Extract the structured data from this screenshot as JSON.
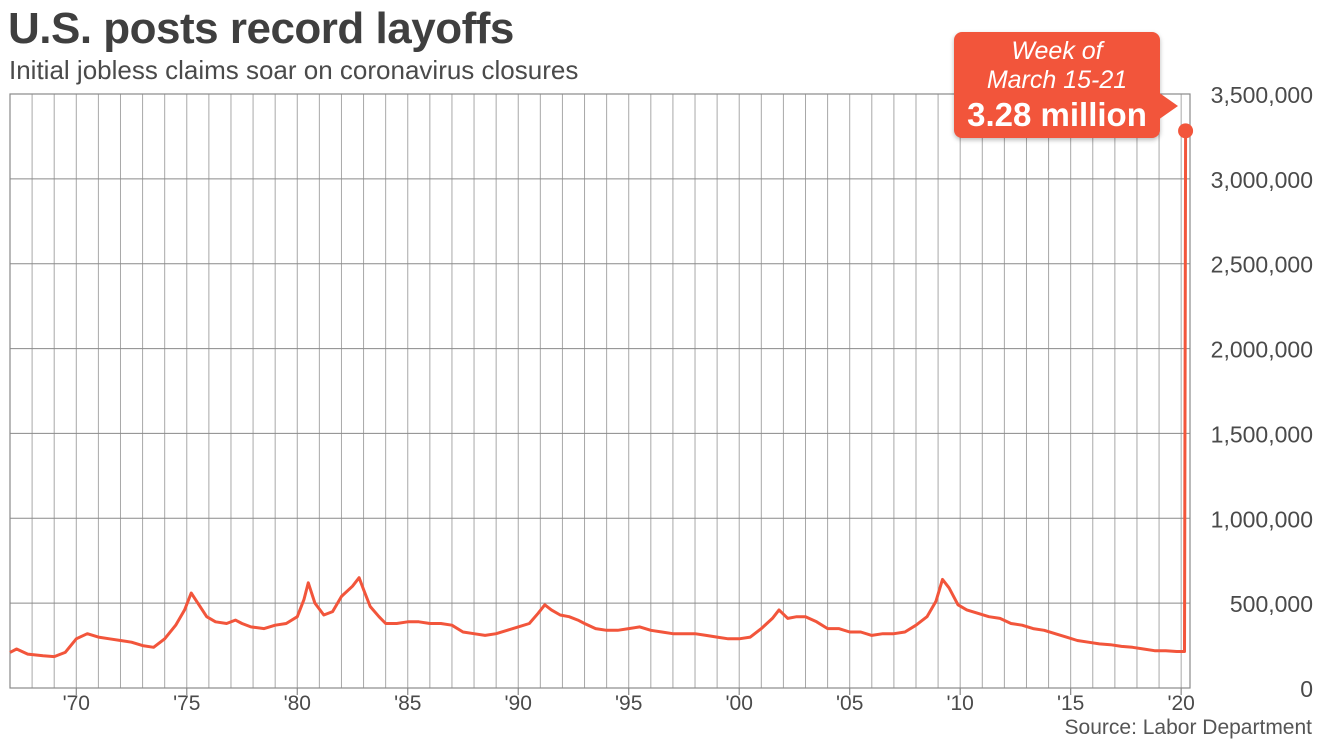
{
  "title": "U.S. posts record layoffs",
  "subtitle": "Initial jobless claims soar on coronavirus closures",
  "source": "Source: Labor Department",
  "callout": {
    "line1": "Week of",
    "line2": "March 15-21",
    "value": "3.28 million"
  },
  "colors": {
    "series": "#f2553b",
    "grid": "#a8a8a8",
    "frame": "#8a8a8a",
    "text": "#4a4a4a"
  },
  "chart_data": {
    "type": "line",
    "title": "U.S. posts record layoffs",
    "subtitle": "Initial jobless claims soar on coronavirus closures",
    "xlabel": "",
    "ylabel": "",
    "xlim": [
      1967.0,
      2020.4
    ],
    "ylim": [
      0,
      3500000
    ],
    "grid": true,
    "y_ticks": [
      0,
      500000,
      1000000,
      1500000,
      2000000,
      2500000,
      3000000,
      3500000
    ],
    "y_tick_labels": [
      "0",
      "500,000",
      "1,000,000",
      "1,500,000",
      "2,000,000",
      "2,500,000",
      "3,000,000",
      "3,500,000"
    ],
    "x_ticks": [
      1970,
      1975,
      1980,
      1985,
      1990,
      1995,
      2000,
      2005,
      2010,
      2015,
      2020
    ],
    "x_tick_labels": [
      "'70",
      "'75",
      "'80",
      "'85",
      "'90",
      "'95",
      "'00",
      "'05",
      "'10",
      "'15",
      "'20"
    ],
    "series": [
      {
        "x": [
          1967.0,
          1967.3,
          1967.8,
          1968.5,
          1969.0,
          1969.5,
          1970.0,
          1970.5,
          1971.0,
          1971.5,
          1972.0,
          1972.5,
          1973.0,
          1973.5,
          1974.0,
          1974.5,
          1974.9,
          1975.2,
          1975.5,
          1975.9,
          1976.3,
          1976.8,
          1977.2,
          1977.5,
          1977.9,
          1978.5,
          1979.0,
          1979.5,
          1980.0,
          1980.3,
          1980.5,
          1980.8,
          1981.2,
          1981.6,
          1982.0,
          1982.5,
          1982.8,
          1983.0,
          1983.3,
          1983.7,
          1984.0,
          1984.5,
          1985.0,
          1985.5,
          1986.0,
          1986.5,
          1987.0,
          1987.5,
          1988.0,
          1988.5,
          1989.0,
          1989.5,
          1990.0,
          1990.5,
          1990.9,
          1991.2,
          1991.5,
          1991.9,
          1992.3,
          1992.7,
          1993.0,
          1993.5,
          1994.0,
          1994.5,
          1995.0,
          1995.5,
          1996.0,
          1996.5,
          1997.0,
          1997.5,
          1998.0,
          1998.5,
          1999.0,
          1999.5,
          2000.0,
          2000.5,
          2001.0,
          2001.5,
          2001.8,
          2002.2,
          2002.6,
          2003.0,
          2003.5,
          2004.0,
          2004.5,
          2005.0,
          2005.5,
          2006.0,
          2006.5,
          2007.0,
          2007.5,
          2008.0,
          2008.5,
          2008.9,
          2009.2,
          2009.5,
          2009.9,
          2010.3,
          2010.8,
          2011.3,
          2011.8,
          2012.3,
          2012.8,
          2013.3,
          2013.8,
          2014.3,
          2014.8,
          2015.3,
          2015.8,
          2016.3,
          2016.8,
          2017.3,
          2017.8,
          2018.3,
          2018.8,
          2019.3,
          2019.8,
          2020.15,
          2020.2
        ],
        "y": [
          210000,
          230000,
          200000,
          190000,
          185000,
          210000,
          290000,
          320000,
          300000,
          290000,
          280000,
          270000,
          250000,
          240000,
          290000,
          370000,
          460000,
          560000,
          500000,
          420000,
          390000,
          380000,
          400000,
          380000,
          360000,
          350000,
          370000,
          380000,
          420000,
          520000,
          620000,
          500000,
          430000,
          450000,
          540000,
          600000,
          650000,
          580000,
          480000,
          420000,
          380000,
          380000,
          390000,
          390000,
          380000,
          380000,
          370000,
          330000,
          320000,
          310000,
          320000,
          340000,
          360000,
          380000,
          440000,
          490000,
          460000,
          430000,
          420000,
          400000,
          380000,
          350000,
          340000,
          340000,
          350000,
          360000,
          340000,
          330000,
          320000,
          320000,
          320000,
          310000,
          300000,
          290000,
          290000,
          300000,
          350000,
          410000,
          460000,
          410000,
          420000,
          420000,
          390000,
          350000,
          350000,
          330000,
          330000,
          310000,
          320000,
          320000,
          330000,
          370000,
          420000,
          510000,
          640000,
          590000,
          490000,
          460000,
          440000,
          420000,
          410000,
          380000,
          370000,
          350000,
          340000,
          320000,
          300000,
          280000,
          270000,
          260000,
          255000,
          245000,
          240000,
          230000,
          220000,
          220000,
          215000,
          215000,
          3283000
        ]
      }
    ]
  }
}
